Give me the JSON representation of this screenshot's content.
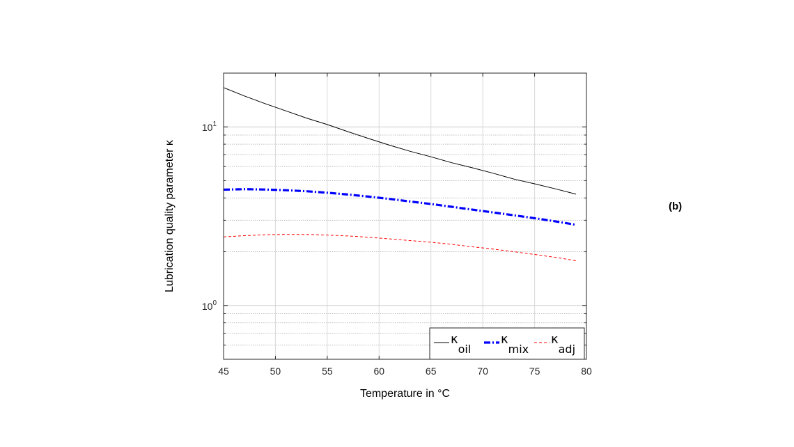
{
  "panel_label": "(b)",
  "chart_data": {
    "type": "line",
    "xlabel": "Temperature in °C",
    "ylabel": "Lubrication quality parameter κ",
    "xlim": [
      45,
      80
    ],
    "ylim": [
      0.5,
      20
    ],
    "yscale": "log",
    "grid": true,
    "legend_position": "bottom-right",
    "xticks": [
      45,
      50,
      55,
      60,
      65,
      70,
      75,
      80
    ],
    "yticks": [
      {
        "base": "10",
        "exp": "0",
        "value": 1
      },
      {
        "base": "10",
        "exp": "1",
        "value": 10
      }
    ],
    "x": [
      45,
      47,
      49,
      51,
      53,
      55,
      57,
      59,
      61,
      63,
      65,
      67,
      69,
      71,
      73,
      75,
      77,
      79
    ],
    "series": [
      {
        "name": "κ",
        "sub": "oil",
        "color": "#000000",
        "style": "solid",
        "values": [
          16.6,
          14.9,
          13.5,
          12.3,
          11.2,
          10.3,
          9.4,
          8.6,
          7.9,
          7.3,
          6.8,
          6.3,
          5.9,
          5.5,
          5.1,
          4.8,
          4.5,
          4.2
        ]
      },
      {
        "name": "κ",
        "sub": "mix",
        "color": "#0000ff",
        "style": "dashdot",
        "values": [
          4.45,
          4.48,
          4.46,
          4.42,
          4.36,
          4.28,
          4.18,
          4.07,
          3.95,
          3.82,
          3.7,
          3.57,
          3.44,
          3.32,
          3.2,
          3.08,
          2.96,
          2.83
        ]
      },
      {
        "name": "κ",
        "sub": "adj",
        "color": "#ff0000",
        "style": "dashed",
        "values": [
          2.42,
          2.46,
          2.49,
          2.5,
          2.5,
          2.48,
          2.45,
          2.41,
          2.36,
          2.31,
          2.26,
          2.2,
          2.13,
          2.07,
          2.0,
          1.93,
          1.86,
          1.78
        ]
      }
    ]
  }
}
